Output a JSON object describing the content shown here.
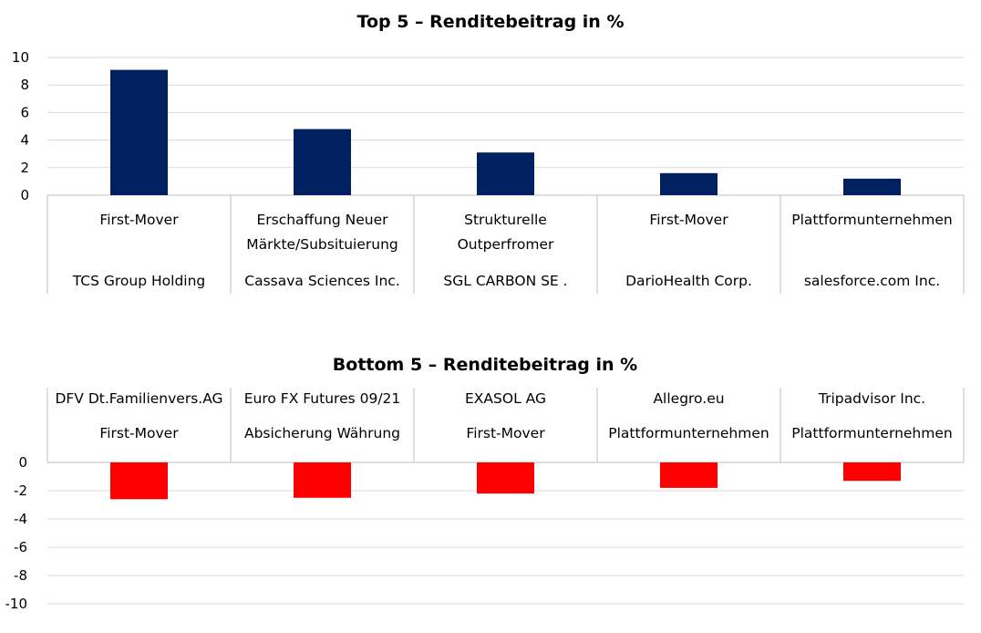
{
  "colors": {
    "positive_bar": "#002060",
    "negative_bar": "#ff0000",
    "grid": "#d9d9d9",
    "axis": "#bfbfbf"
  },
  "chart_data": [
    {
      "type": "bar",
      "title": "Top 5 – Renditebeitrag in %",
      "xlabel": "",
      "ylabel": "",
      "ylim": [
        0,
        10
      ],
      "y_ticks": [
        "0",
        "2",
        "4",
        "6",
        "8",
        "10"
      ],
      "grid": true,
      "categories": [
        {
          "segment": "First-Mover",
          "company": "TCS Group Holding"
        },
        {
          "segment": "Erschaffung Neuer Märkte/Subsituierung",
          "company": "Cassava Sciences Inc."
        },
        {
          "segment": "Strukturelle Outperfromer",
          "company": "SGL CARBON SE ."
        },
        {
          "segment": "First-Mover",
          "company": "DarioHealth Corp."
        },
        {
          "segment": "Plattformunternehmen",
          "company": "salesforce.com Inc."
        }
      ],
      "values": [
        9.1,
        4.8,
        3.1,
        1.6,
        1.2
      ]
    },
    {
      "type": "bar",
      "title": "Bottom 5 – Renditebeitrag in %",
      "xlabel": "",
      "ylabel": "",
      "ylim": [
        -10,
        0
      ],
      "y_ticks": [
        "0",
        "-2",
        "-4",
        "-6",
        "-8",
        "-10"
      ],
      "grid": true,
      "categories": [
        {
          "segment": "First-Mover",
          "company": "DFV Dt.Familienvers.AG"
        },
        {
          "segment": "Absicherung Währung",
          "company": "Euro FX Futures 09/21"
        },
        {
          "segment": "First-Mover",
          "company": "EXASOL AG"
        },
        {
          "segment": "Plattformunternehmen",
          "company": "Allegro.eu"
        },
        {
          "segment": "Plattformunternehmen",
          "company": "Tripadvisor Inc."
        }
      ],
      "values": [
        -2.6,
        -2.5,
        -2.2,
        -1.8,
        -1.3
      ]
    }
  ]
}
